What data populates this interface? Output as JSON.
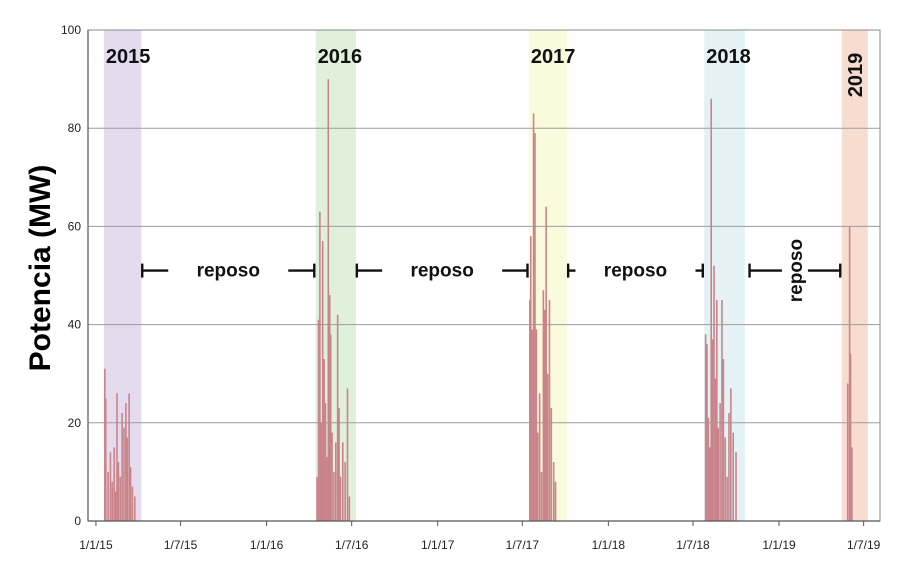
{
  "chart_data": {
    "type": "bar",
    "title": "",
    "xlabel": "",
    "ylabel": "Potencia (MW)",
    "ylim": [
      0,
      100
    ],
    "yticks": [
      0,
      20,
      40,
      60,
      80,
      100
    ],
    "xlim": [
      "2014-12-15",
      "2019-08-05"
    ],
    "xticks": [
      {
        "date": "2015-01-01",
        "label": "1/1/15"
      },
      {
        "date": "2015-07-01",
        "label": "1/7/15"
      },
      {
        "date": "2016-01-01",
        "label": "1/1/16"
      },
      {
        "date": "2016-07-01",
        "label": "1/7/16"
      },
      {
        "date": "2017-01-01",
        "label": "1/1/17"
      },
      {
        "date": "2017-07-01",
        "label": "1/7/17"
      },
      {
        "date": "2018-01-01",
        "label": "1/1/18"
      },
      {
        "date": "2018-07-01",
        "label": "1/7/18"
      },
      {
        "date": "2019-01-01",
        "label": "1/1/19"
      },
      {
        "date": "2019-07-01",
        "label": "1/7/19"
      }
    ],
    "grid": true,
    "bar_color": "#c9848a",
    "seasons": [
      {
        "label": "2015",
        "start": "2015-01-18",
        "end": "2015-04-08",
        "color": "#e4dbee",
        "label_rotated": false
      },
      {
        "label": "2016",
        "start": "2016-04-15",
        "end": "2016-07-10",
        "color": "#dff1db",
        "label_rotated": false
      },
      {
        "label": "2017",
        "start": "2017-07-15",
        "end": "2017-10-05",
        "color": "#fafadd",
        "label_rotated": false
      },
      {
        "label": "2018",
        "start": "2018-07-25",
        "end": "2018-10-20",
        "color": "#e4f2f6",
        "label_rotated": false
      },
      {
        "label": "2019",
        "start": "2019-05-15",
        "end": "2019-07-10",
        "color": "#f9dcd0",
        "label_rotated": true
      }
    ],
    "rest_periods": [
      {
        "label": "reposo",
        "start": "2015-04-10",
        "end": "2016-04-12",
        "y": 51,
        "rotated": false
      },
      {
        "label": "reposo",
        "start": "2016-07-12",
        "end": "2017-07-12",
        "y": 51,
        "rotated": false
      },
      {
        "label": "reposo",
        "start": "2017-10-07",
        "end": "2018-07-22",
        "y": 51,
        "rotated": false
      },
      {
        "label": "reposo",
        "start": "2018-10-30",
        "end": "2019-05-12",
        "y": 51,
        "rotated": true
      }
    ],
    "series": [
      {
        "points": [
          [
            "2015-01-20",
            31
          ],
          [
            "2015-01-22",
            25
          ],
          [
            "2015-01-27",
            10
          ],
          [
            "2015-02-01",
            14
          ],
          [
            "2015-02-05",
            8
          ],
          [
            "2015-02-09",
            15
          ],
          [
            "2015-02-12",
            6
          ],
          [
            "2015-02-15",
            26
          ],
          [
            "2015-02-18",
            12
          ],
          [
            "2015-02-22",
            9
          ],
          [
            "2015-02-26",
            22
          ],
          [
            "2015-03-02",
            19
          ],
          [
            "2015-03-06",
            24
          ],
          [
            "2015-03-09",
            17
          ],
          [
            "2015-03-13",
            26
          ],
          [
            "2015-03-16",
            11
          ],
          [
            "2015-03-20",
            7
          ],
          [
            "2015-03-25",
            5
          ],
          [
            "2016-04-18",
            9
          ],
          [
            "2016-04-21",
            41
          ],
          [
            "2016-04-24",
            63
          ],
          [
            "2016-04-27",
            20
          ],
          [
            "2016-04-30",
            57
          ],
          [
            "2016-05-03",
            33
          ],
          [
            "2016-05-06",
            24
          ],
          [
            "2016-05-09",
            13
          ],
          [
            "2016-05-12",
            90
          ],
          [
            "2016-05-15",
            46
          ],
          [
            "2016-05-17",
            38
          ],
          [
            "2016-05-20",
            18
          ],
          [
            "2016-05-24",
            10
          ],
          [
            "2016-05-28",
            16
          ],
          [
            "2016-06-01",
            42
          ],
          [
            "2016-06-04",
            23
          ],
          [
            "2016-06-07",
            9
          ],
          [
            "2016-06-12",
            16
          ],
          [
            "2016-06-17",
            12
          ],
          [
            "2016-06-22",
            27
          ],
          [
            "2016-06-26",
            5
          ],
          [
            "2017-07-17",
            45
          ],
          [
            "2017-07-19",
            58
          ],
          [
            "2017-07-22",
            39
          ],
          [
            "2017-07-25",
            83
          ],
          [
            "2017-07-28",
            79
          ],
          [
            "2017-07-31",
            39
          ],
          [
            "2017-08-03",
            18
          ],
          [
            "2017-08-07",
            26
          ],
          [
            "2017-08-11",
            10
          ],
          [
            "2017-08-15",
            47
          ],
          [
            "2017-08-18",
            43
          ],
          [
            "2017-08-21",
            64
          ],
          [
            "2017-08-24",
            30
          ],
          [
            "2017-08-28",
            45
          ],
          [
            "2017-09-01",
            23
          ],
          [
            "2017-09-06",
            12
          ],
          [
            "2017-09-10",
            8
          ],
          [
            "2018-07-28",
            38
          ],
          [
            "2018-07-31",
            36
          ],
          [
            "2018-08-03",
            21
          ],
          [
            "2018-08-06",
            15
          ],
          [
            "2018-08-09",
            86
          ],
          [
            "2018-08-12",
            37
          ],
          [
            "2018-08-15",
            52
          ],
          [
            "2018-08-18",
            29
          ],
          [
            "2018-08-21",
            45
          ],
          [
            "2018-08-24",
            19
          ],
          [
            "2018-08-28",
            24
          ],
          [
            "2018-09-01",
            45
          ],
          [
            "2018-09-04",
            33
          ],
          [
            "2018-09-08",
            17
          ],
          [
            "2018-09-12",
            9
          ],
          [
            "2018-09-16",
            22
          ],
          [
            "2018-09-20",
            27
          ],
          [
            "2018-09-25",
            18
          ],
          [
            "2018-10-01",
            14
          ],
          [
            "2019-05-28",
            28
          ],
          [
            "2019-06-01",
            60
          ],
          [
            "2019-06-03",
            34
          ],
          [
            "2019-06-06",
            15
          ]
        ]
      }
    ]
  }
}
